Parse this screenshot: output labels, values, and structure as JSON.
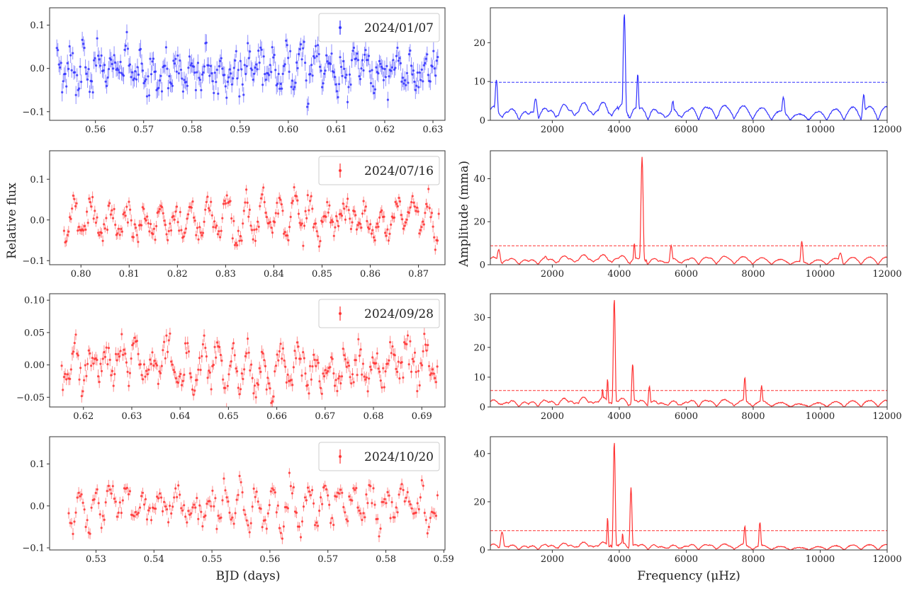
{
  "figure": {
    "left_ylabel": "Relative flux",
    "right_ylabel": "Amplitude (mma)",
    "left_xlabel": "BJD (days)",
    "right_xlabel": "Frequency (μHz)"
  },
  "chart_data": [
    {
      "type": "scatter",
      "panel": "lightcurve-1",
      "title": "2024/01/07",
      "legend": "2024/01/07",
      "color": "#3333ff",
      "xlim": [
        0.5505,
        0.6325
      ],
      "ylim": [
        -0.12,
        0.14
      ],
      "xticks": [
        0.55,
        0.56,
        0.57,
        0.58,
        0.59,
        0.6,
        0.61,
        0.62,
        0.63
      ],
      "xticklabels": [
        "0.55",
        "0.56",
        "0.57",
        "0.58",
        "0.59",
        "0.60",
        "0.61",
        "0.62",
        "0.63"
      ],
      "yticks": [
        -0.1,
        0.0,
        0.1
      ],
      "yticklabels": [
        "−0.1",
        "0.0",
        "0.1"
      ],
      "x_start": 0.552,
      "x_end": 0.631,
      "n_points": 360,
      "amplitude": 0.035,
      "noise": 0.02,
      "err": 0.018,
      "period": 0.0028,
      "seed": 11,
      "xlabel": "",
      "ylabel": ""
    },
    {
      "type": "line",
      "panel": "periodogram-1",
      "color": "#3333ff",
      "xlim": [
        150,
        12000
      ],
      "ylim": [
        0,
        29
      ],
      "xticks": [
        2000,
        4000,
        6000,
        8000,
        10000,
        12000
      ],
      "xticklabels": [
        "2000",
        "4000",
        "6000",
        "8000",
        "10000",
        "12000"
      ],
      "yticks": [
        0,
        10,
        20
      ],
      "yticklabels": [
        "0",
        "10",
        "20"
      ],
      "threshold": 9.8,
      "baseline": 2.5,
      "seed": 21,
      "peaks": [
        [
          330,
          10.5,
          95
        ],
        [
          4150,
          27.5,
          85
        ],
        [
          4550,
          12.0,
          75
        ],
        [
          5600,
          5.0,
          90
        ],
        [
          8900,
          6.0,
          100
        ],
        [
          11300,
          6.5,
          90
        ],
        [
          3950,
          3.5,
          60
        ],
        [
          1500,
          5.5,
          120
        ]
      ],
      "xlabel": "",
      "ylabel": ""
    },
    {
      "type": "scatter",
      "panel": "lightcurve-2",
      "title": "2024/07/16",
      "legend": "2024/07/16",
      "color": "#ff3333",
      "xlim": [
        0.7935,
        0.8755
      ],
      "ylim": [
        -0.11,
        0.17
      ],
      "xticks": [
        0.8,
        0.81,
        0.82,
        0.83,
        0.84,
        0.85,
        0.86,
        0.87
      ],
      "xticklabels": [
        "0.80",
        "0.81",
        "0.82",
        "0.83",
        "0.84",
        "0.85",
        "0.86",
        "0.87"
      ],
      "yticks": [
        -0.1,
        0.0,
        0.1
      ],
      "yticklabels": [
        "−0.1",
        "0.0",
        "0.1"
      ],
      "x_start": 0.7965,
      "x_end": 0.8742,
      "n_points": 330,
      "amplitude": 0.05,
      "noise": 0.015,
      "err": 0.012,
      "period": 0.0035,
      "seed": 33,
      "xlabel": "",
      "ylabel": ""
    },
    {
      "type": "line",
      "panel": "periodogram-2",
      "color": "#ff3333",
      "xlim": [
        150,
        12000
      ],
      "ylim": [
        0,
        53
      ],
      "xticks": [
        2000,
        4000,
        6000,
        8000,
        10000,
        12000
      ],
      "xticklabels": [
        "2000",
        "4000",
        "6000",
        "8000",
        "10000",
        "12000"
      ],
      "yticks": [
        0,
        20,
        40
      ],
      "yticklabels": [
        "0",
        "20",
        "40"
      ],
      "threshold": 8.8,
      "baseline": 2.5,
      "seed": 43,
      "peaks": [
        [
          4680,
          50.0,
          85
        ],
        [
          4450,
          10.0,
          60
        ],
        [
          5550,
          9.0,
          90
        ],
        [
          9450,
          11.0,
          80
        ],
        [
          400,
          7.0,
          110
        ],
        [
          1800,
          4.0,
          120
        ],
        [
          10600,
          5.5,
          120
        ]
      ],
      "xlabel": "",
      "ylabel": ""
    },
    {
      "type": "scatter",
      "panel": "lightcurve-3",
      "title": "2024/09/28",
      "legend": "2024/09/28",
      "color": "#ff3333",
      "xlim": [
        0.613,
        0.6948
      ],
      "ylim": [
        -0.065,
        0.11
      ],
      "xticks": [
        0.62,
        0.63,
        0.64,
        0.65,
        0.66,
        0.67,
        0.68,
        0.69
      ],
      "xticklabels": [
        "0.62",
        "0.63",
        "0.64",
        "0.65",
        "0.66",
        "0.67",
        "0.68",
        "0.69"
      ],
      "yticks": [
        -0.05,
        0.0,
        0.05,
        0.1
      ],
      "yticklabels": [
        "−0.05",
        "0.00",
        "0.05",
        "0.10"
      ],
      "x_start": 0.6155,
      "x_end": 0.6932,
      "n_points": 320,
      "amplitude": 0.035,
      "noise": 0.012,
      "err": 0.009,
      "period": 0.0033,
      "seed": 55,
      "xlabel": "",
      "ylabel": ""
    },
    {
      "type": "line",
      "panel": "periodogram-3",
      "color": "#ff3333",
      "xlim": [
        150,
        12000
      ],
      "ylim": [
        0,
        38
      ],
      "xticks": [
        2000,
        4000,
        6000,
        8000,
        10000,
        12000
      ],
      "xticklabels": [
        "2000",
        "4000",
        "6000",
        "8000",
        "10000",
        "12000"
      ],
      "yticks": [
        0,
        10,
        20,
        30
      ],
      "yticklabels": [
        "0",
        "10",
        "20",
        "30"
      ],
      "threshold": 5.5,
      "baseline": 1.5,
      "seed": 65,
      "peaks": [
        [
          3850,
          36.5,
          75
        ],
        [
          3650,
          9.5,
          50
        ],
        [
          4400,
          14.5,
          70
        ],
        [
          4900,
          7.0,
          70
        ],
        [
          7750,
          10.0,
          70
        ],
        [
          8250,
          7.2,
          70
        ],
        [
          3500,
          6.0,
          50
        ]
      ],
      "xlabel": "",
      "ylabel": ""
    },
    {
      "type": "scatter",
      "panel": "lightcurve-4",
      "title": "2024/10/20",
      "legend": "2024/10/20",
      "color": "#ff3333",
      "xlim": [
        0.522,
        0.5902
      ],
      "ylim": [
        -0.105,
        0.165
      ],
      "xticks": [
        0.53,
        0.54,
        0.55,
        0.56,
        0.57,
        0.58,
        0.59
      ],
      "xticklabels": [
        "0.53",
        "0.54",
        "0.55",
        "0.56",
        "0.57",
        "0.58",
        "0.59"
      ],
      "yticks": [
        -0.1,
        0.0,
        0.1
      ],
      "yticklabels": [
        "−0.1",
        "0.0",
        "0.1"
      ],
      "x_start": 0.5253,
      "x_end": 0.5889,
      "n_points": 260,
      "amplitude": 0.05,
      "noise": 0.015,
      "err": 0.012,
      "period": 0.0028,
      "seed": 77,
      "xlabel": "",
      "ylabel": ""
    },
    {
      "type": "line",
      "panel": "periodogram-4",
      "color": "#ff3333",
      "xlim": [
        150,
        12000
      ],
      "ylim": [
        0,
        47
      ],
      "xticks": [
        2000,
        4000,
        6000,
        8000,
        10000,
        12000
      ],
      "xticklabels": [
        "2000",
        "4000",
        "6000",
        "8000",
        "10000",
        "12000"
      ],
      "yticks": [
        0,
        20,
        40
      ],
      "yticklabels": [
        "0",
        "20",
        "40"
      ],
      "threshold": 8.0,
      "baseline": 1.5,
      "seed": 87,
      "peaks": [
        [
          3850,
          45.0,
          75
        ],
        [
          4350,
          26.0,
          75
        ],
        [
          3650,
          13.5,
          50
        ],
        [
          500,
          7.5,
          110
        ],
        [
          7750,
          10.0,
          70
        ],
        [
          8200,
          11.5,
          70
        ],
        [
          4100,
          7.0,
          45
        ]
      ],
      "xlabel": "",
      "ylabel": ""
    }
  ]
}
